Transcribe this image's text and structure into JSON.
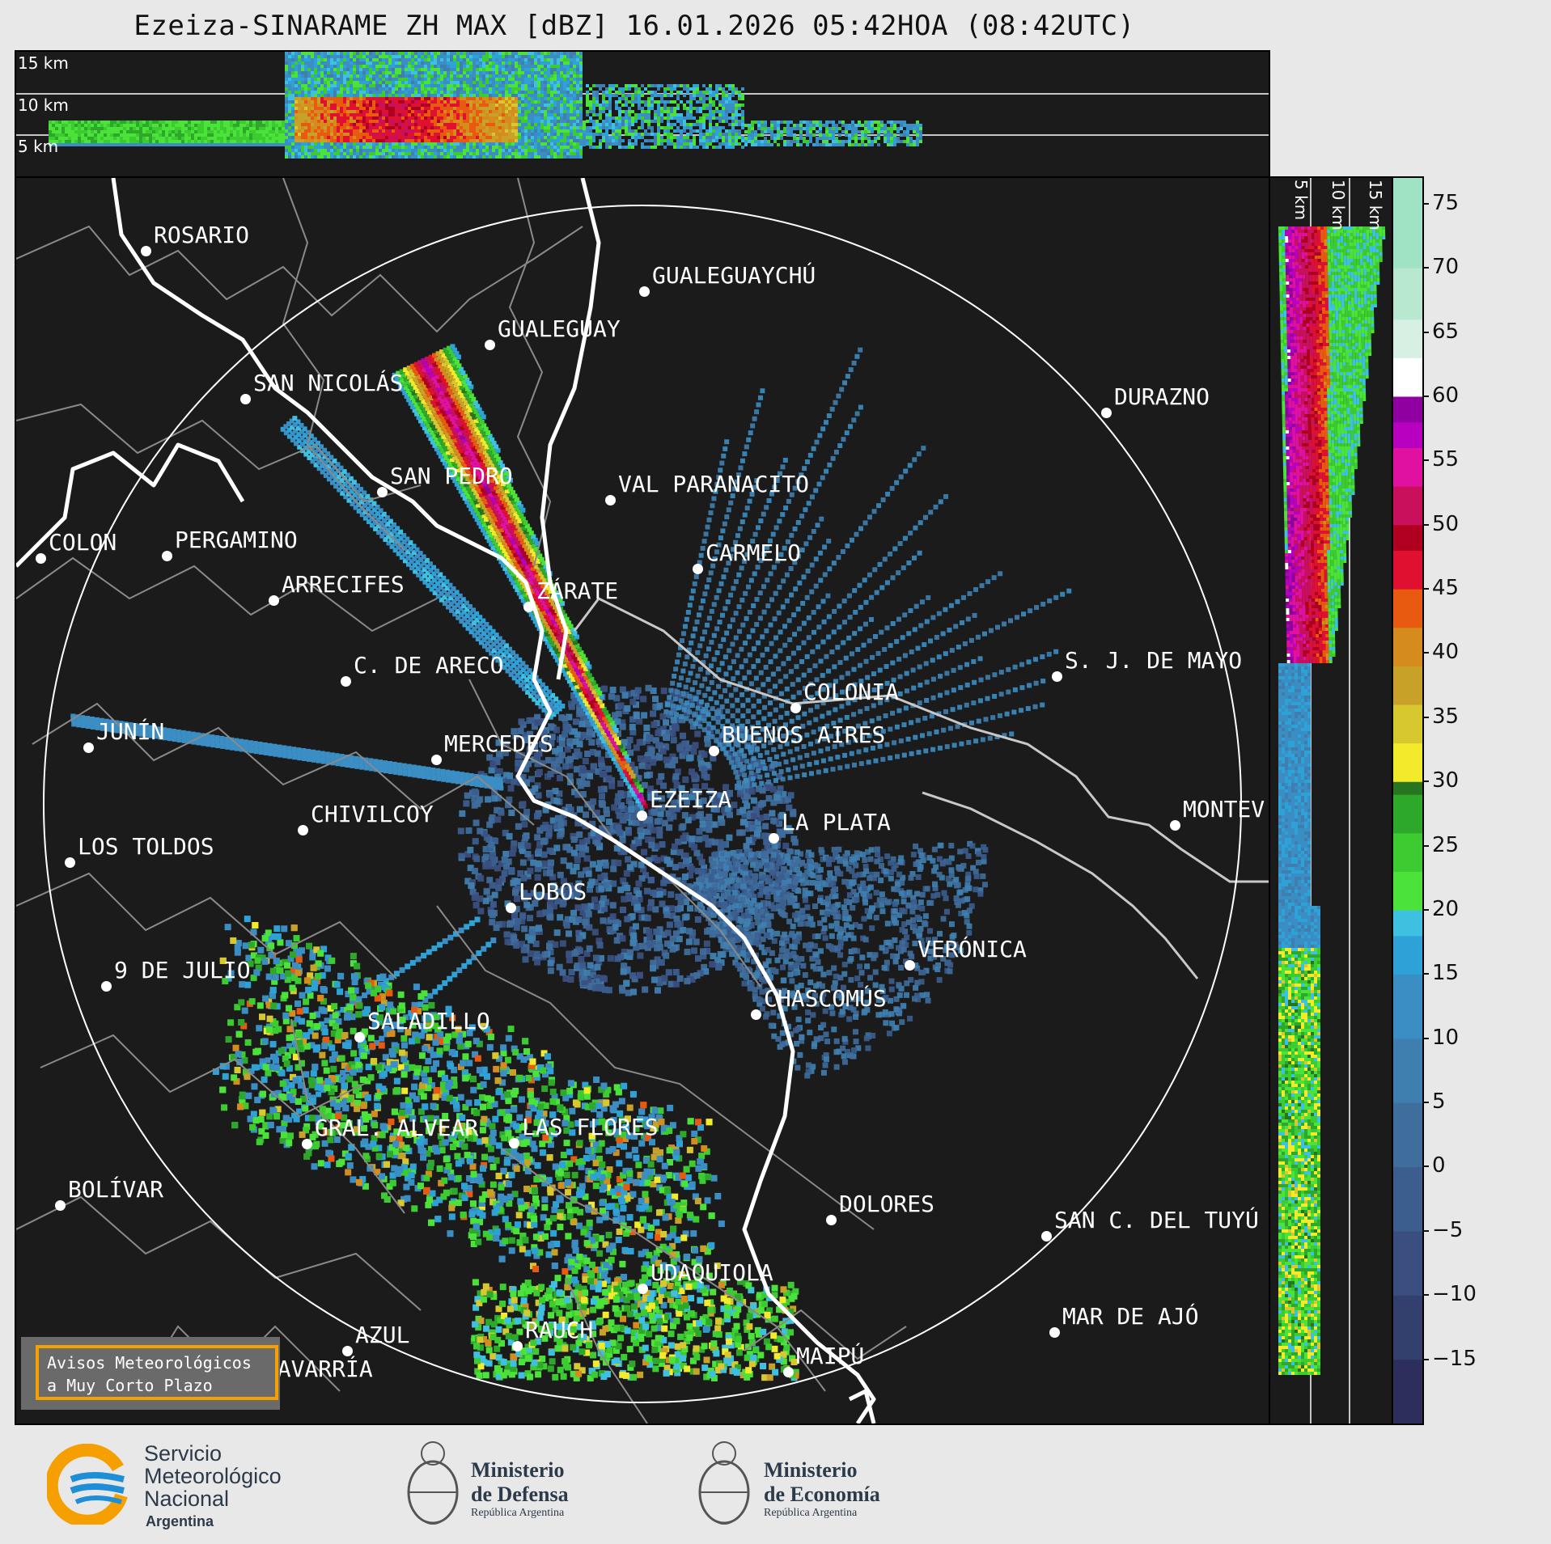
{
  "title": "Ezeiza-SINARAME ZH MAX [dBZ] 16.01.2026 05:42HOA (08:42UTC)",
  "top_panel": {
    "levels": [
      "15 km",
      "10 km",
      "5 km"
    ]
  },
  "side_panel": {
    "levels": [
      "5 km",
      "10 km",
      "15 km"
    ]
  },
  "colorbar": {
    "ticks": [
      "75",
      "70",
      "65",
      "60",
      "55",
      "50",
      "45",
      "40",
      "35",
      "30",
      "25",
      "20",
      "15",
      "10",
      "5",
      "0",
      "−5",
      "−10",
      "−15"
    ],
    "tick_values": [
      75,
      70,
      65,
      60,
      55,
      50,
      45,
      40,
      35,
      30,
      25,
      20,
      15,
      10,
      5,
      0,
      -5,
      -10,
      -15
    ],
    "range": [
      -20,
      77
    ]
  },
  "cities": [
    {
      "name": "ROSARIO"
    },
    {
      "name": "GUALEGUAYCHÚ"
    },
    {
      "name": "GUALEGUAY"
    },
    {
      "name": "SAN NICOLÁS"
    },
    {
      "name": "DURAZNO"
    },
    {
      "name": "SAN PEDRO"
    },
    {
      "name": "VAL PARANACITO"
    },
    {
      "name": "COLON"
    },
    {
      "name": "PERGAMINO"
    },
    {
      "name": "CARMELO"
    },
    {
      "name": "ARRECIFES"
    },
    {
      "name": "ZÁRATE"
    },
    {
      "name": "S. J. DE MAYO"
    },
    {
      "name": "C. DE ARECO"
    },
    {
      "name": "COLONIA"
    },
    {
      "name": "JUNÍN"
    },
    {
      "name": "BUENOS AIRES"
    },
    {
      "name": "MERCEDES"
    },
    {
      "name": "EZEIZA"
    },
    {
      "name": "MONTEV"
    },
    {
      "name": "CHIVILCOY"
    },
    {
      "name": "LA PLATA"
    },
    {
      "name": "LOS TOLDOS"
    },
    {
      "name": "LOBOS"
    },
    {
      "name": "VERÓNICA"
    },
    {
      "name": "9 DE JULIO"
    },
    {
      "name": "CHASCOMÚS"
    },
    {
      "name": "SALADILLO"
    },
    {
      "name": "GRAL. ALVEAR"
    },
    {
      "name": "LAS FLORES"
    },
    {
      "name": "BOLÍVAR"
    },
    {
      "name": "DOLORES"
    },
    {
      "name": "SAN C. DEL TUYÚ"
    },
    {
      "name": "UDAQUIOLA"
    },
    {
      "name": "MAR DE AJÓ"
    },
    {
      "name": "AZUL"
    },
    {
      "name": "RAUCH"
    },
    {
      "name": "MAIPÚ"
    },
    {
      "name": "OLAVARRÍA"
    }
  ],
  "avisos": {
    "line1": "Avisos Meteorológicos",
    "line2": "a Muy Corto Plazo"
  },
  "logos": {
    "smn": {
      "line1": "Servicio",
      "line2": "Meteorológico",
      "line3": "Nacional",
      "line4": "Argentina"
    },
    "defensa": {
      "line1": "Ministerio",
      "line2": "de Defensa",
      "line3": "República Argentina"
    },
    "economia": {
      "line1": "Ministerio",
      "line2": "de Economía",
      "line3": "República Argentina"
    }
  },
  "colors": {
    "panel_bg": "#1b1b1b",
    "smn_blue": "#1e8fd6",
    "smn_orange": "#f5a000",
    "aviso_border": "#f5a000"
  }
}
